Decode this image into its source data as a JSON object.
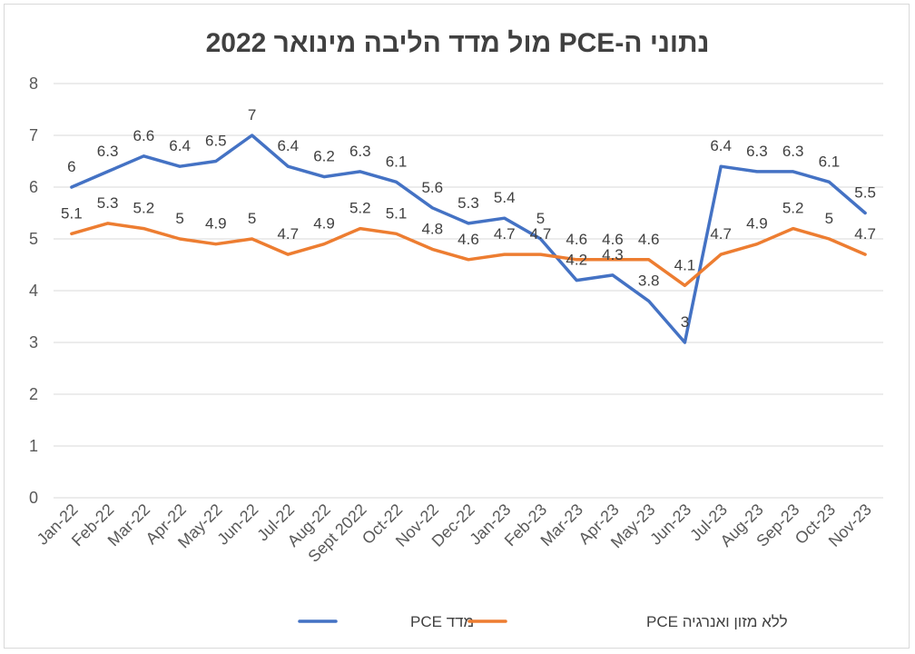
{
  "chart_data": {
    "type": "line",
    "title": "נתוני ה-PCE מול מדד הליבה מינואר 2022",
    "xlabel": "",
    "ylabel": "",
    "ylim": [
      0,
      8
    ],
    "yticks": [
      "0",
      "1",
      "2",
      "3",
      "4",
      "5",
      "6",
      "7",
      "8"
    ],
    "grid": true,
    "legend_position": "bottom",
    "categories": [
      "Jan-22",
      "Feb-22",
      "Mar-22",
      "Apr-22",
      "May-22",
      "Jun-22",
      "Jul-22",
      "Aug-22",
      "Sept 2022",
      "Oct-22",
      "Nov-22",
      "Dec-22",
      "Jan-23",
      "Feb-23",
      "Mar-23",
      "Apr-23",
      "May-23",
      "Jun-23",
      "Jul-23",
      "Aug-23",
      "Sep-23",
      "Oct-23",
      "Nov-23"
    ],
    "series": [
      {
        "name": "מדד PCE",
        "color": "#4472C4",
        "values": [
          6,
          6.3,
          6.6,
          6.4,
          6.5,
          7,
          6.4,
          6.2,
          6.3,
          6.1,
          5.6,
          5.3,
          5.4,
          5,
          4.2,
          4.3,
          3.8,
          3,
          6.4,
          6.3,
          6.3,
          6.1,
          5.5
        ],
        "labels": [
          "6",
          "6.3",
          "6.6",
          "6.4",
          "6.5",
          "7",
          "6.4",
          "6.2",
          "6.3",
          "6.1",
          "5.6",
          "5.3",
          "5.4",
          "5",
          "4.2",
          "4.3",
          "3.8",
          "3",
          "6.4",
          "6.3",
          "6.3",
          "6.1",
          "5.5"
        ]
      },
      {
        "name": "ללא מזון ואנרגיה PCE",
        "color": "#ED7D31",
        "values": [
          5.1,
          5.3,
          5.2,
          5,
          4.9,
          5,
          4.7,
          4.9,
          5.2,
          5.1,
          4.8,
          4.6,
          4.7,
          4.7,
          4.6,
          4.6,
          4.6,
          4.1,
          4.7,
          4.9,
          5.2,
          5,
          4.7
        ],
        "labels": [
          "5.1",
          "5.3",
          "5.2",
          "5",
          "4.9",
          "5",
          "4.7",
          "4.9",
          "5.2",
          "5.1",
          "4.8",
          "4.6",
          "4.7",
          "4.7",
          "4.6",
          "4.6",
          "4.6",
          "4.1",
          "4.7",
          "4.9",
          "5.2",
          "5",
          "4.7"
        ]
      }
    ]
  }
}
